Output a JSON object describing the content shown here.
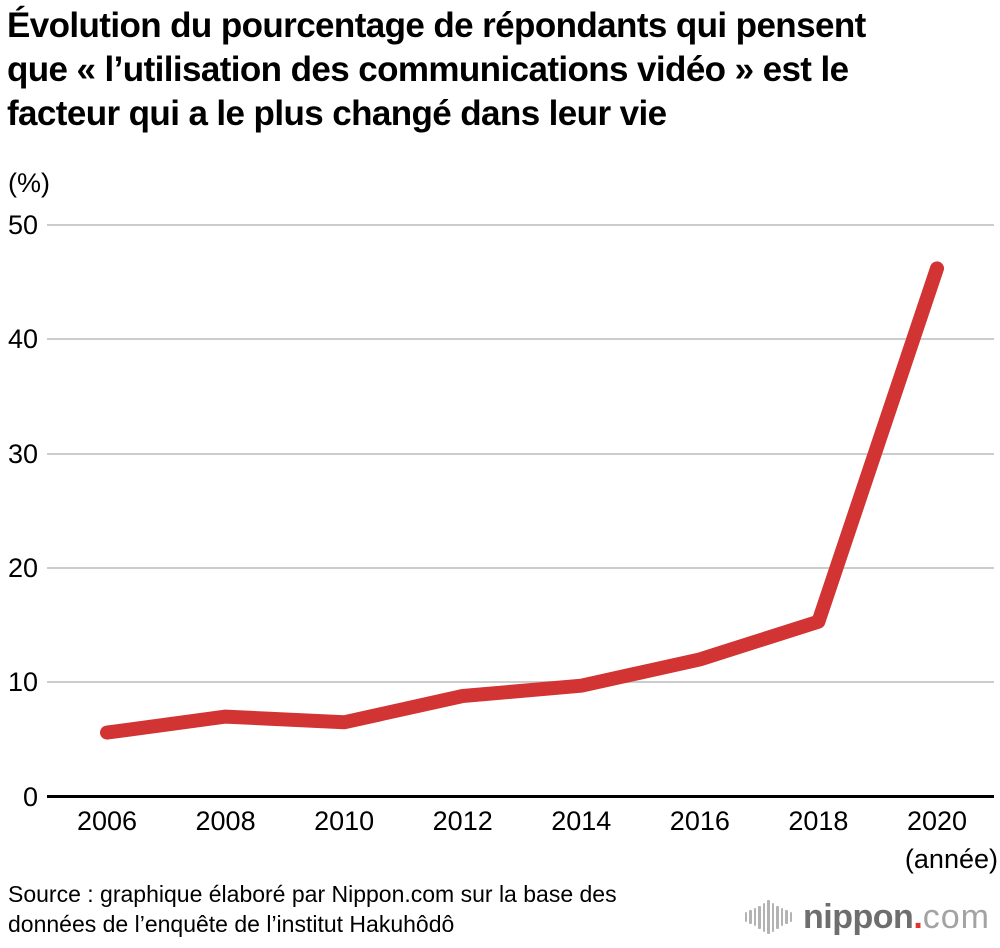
{
  "title": {
    "text": "Évolution du pourcentage de répondants qui pensent\nque « l’utilisation des communications vidéo » est le\nfacteur qui a le plus changé dans leur vie"
  },
  "axes": {
    "y_unit_label": "(%)",
    "x_unit_label": "(année)"
  },
  "source": {
    "text": "Source : graphique élaboré par Nippon.com sur la base des\ndonnées de l’enquête de l’institut Hakuhôdô"
  },
  "logo": {
    "name": "nippon",
    "dot": ".",
    "tld": "com"
  },
  "colors": {
    "line": "#d23333",
    "grid": "#cccccc",
    "axis": "#000000",
    "logo_gray": "#6e6e6e",
    "logo_light_gray": "#a3a3a3",
    "logo_red": "#e0332b"
  },
  "chart_data": {
    "type": "line",
    "title": "Évolution du pourcentage de répondants qui pensent que « l’utilisation des communications vidéo » est le facteur qui a le plus changé dans leur vie",
    "x": [
      2006,
      2008,
      2010,
      2012,
      2014,
      2016,
      2018,
      2020
    ],
    "values": [
      5.6,
      7.0,
      6.5,
      8.8,
      9.7,
      12.0,
      15.3,
      46.2
    ],
    "xlabel": "(année)",
    "ylabel": "(%)",
    "ylim": [
      0,
      50
    ],
    "yticks": [
      0,
      10,
      20,
      30,
      40,
      50
    ],
    "grid": true,
    "legend": false,
    "line_color": "#d23333",
    "line_width": 14
  }
}
